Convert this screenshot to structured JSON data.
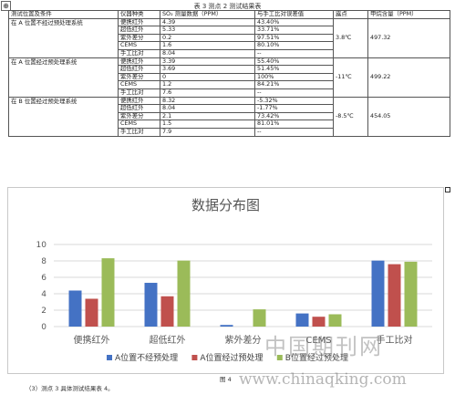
{
  "caption": "表 3 测点 2 测试结果表",
  "table": {
    "headers": [
      "测试位置及条件",
      "仪器种类",
      "SO₂ 测量数据（PPM）",
      "与手工比对误差值",
      "露点",
      "甲烷含量（PPM）"
    ],
    "groups": [
      {
        "condition": "在 A 位置不经过预处理系统",
        "dew": "3.8℃",
        "methane": "497.32",
        "rows": [
          [
            "便携红外",
            "4.39",
            "43.40%"
          ],
          [
            "超低红外",
            "5.33",
            "33.71%"
          ],
          [
            "紫外差分",
            "0.2",
            "97.51%"
          ],
          [
            "CEMS",
            "1.6",
            "80.10%"
          ],
          [
            "手工比对",
            "8.04",
            "--"
          ]
        ]
      },
      {
        "condition": "在 A 位置经过预处理系统",
        "dew": "-11℃",
        "methane": "499.22",
        "rows": [
          [
            "便携红外",
            "3.39",
            "55.40%"
          ],
          [
            "超低红外",
            "3.69",
            "51.45%"
          ],
          [
            "紫外差分",
            "0",
            "100%"
          ],
          [
            "CEMS",
            "1.2",
            "84.21%"
          ],
          [
            "手工比对",
            "7.6",
            "--"
          ]
        ]
      },
      {
        "condition": "在 B 位置经过预处理系统",
        "dew": "-8.5℃",
        "methane": "454.05",
        "rows": [
          [
            "便携红外",
            "8.32",
            "-5.32%"
          ],
          [
            "超低红外",
            "8.04",
            "-1.77%"
          ],
          [
            "紫外差分",
            "2.1",
            "73.42%"
          ],
          [
            "CEMS",
            "1.5",
            "81.01%"
          ],
          [
            "手工比对",
            "7.9",
            "--"
          ]
        ]
      }
    ]
  },
  "chart_data": {
    "type": "bar",
    "title": "数据分布图",
    "categories": [
      "便携红外",
      "超低红外",
      "紫外差分",
      "CEMS",
      "手工比对"
    ],
    "series": [
      {
        "name": "A位置不经预处理",
        "color": "#4472C4",
        "values": [
          4.39,
          5.33,
          0.2,
          1.6,
          8.04
        ]
      },
      {
        "name": "A位置经过预处理",
        "color": "#C0504D",
        "values": [
          3.39,
          3.69,
          0,
          1.2,
          7.6
        ]
      },
      {
        "name": "B位置经过预处理",
        "color": "#9BBB59",
        "values": [
          8.32,
          8.04,
          2.1,
          1.5,
          7.9
        ]
      }
    ],
    "yticks": [
      0,
      2,
      4,
      6,
      8,
      10
    ],
    "ylim": [
      0,
      10
    ],
    "grid": true,
    "legend": "bottom"
  },
  "figure_label": "图 4",
  "footnote": "（3）测点 3 具体测试结果表 4。",
  "watermark": {
    "cn": "中国期刊网",
    "url": "www.chinaqking.com"
  }
}
